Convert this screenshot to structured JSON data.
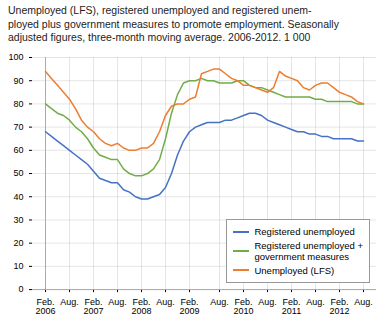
{
  "chart_data": {
    "type": "line",
    "title": "Unemployed (LFS), registered unemployed and registered unem-\nployed plus government measures to promote employment. Seasonally\nadjusted figures, three-month moving average. 2006-2012. 1 000",
    "categories": [
      "Feb.\n2006",
      null,
      null,
      null,
      "Aug.",
      null,
      null,
      null,
      "Feb.\n2007",
      null,
      null,
      null,
      "Aug.",
      null,
      null,
      null,
      "Feb.\n2008",
      null,
      null,
      null,
      "Aug.",
      null,
      null,
      null,
      "Feb.\n2009",
      null,
      null,
      null,
      null,
      "Aug.",
      null,
      null,
      null,
      "Feb.\n2010",
      null,
      null,
      null,
      "Aug.",
      null,
      null,
      null,
      "Feb.\n2011",
      null,
      null,
      null,
      "Aug.",
      null,
      null,
      null,
      "Feb.\n2012",
      null,
      null,
      null,
      "Aug."
    ],
    "series": [
      {
        "name": "Registered unemployed",
        "color": "#4472c4",
        "values": [
          68,
          66,
          64,
          62,
          60,
          58,
          56,
          54,
          51,
          48,
          47,
          46,
          46,
          43,
          42,
          40,
          39,
          39,
          40,
          41,
          44,
          50,
          58,
          64,
          68,
          70,
          71,
          72,
          72,
          72,
          73,
          73,
          74,
          75,
          76,
          76,
          75,
          73,
          72,
          71,
          70,
          69,
          68,
          68,
          67,
          67,
          66,
          66,
          65,
          65,
          65,
          65,
          64,
          64
        ]
      },
      {
        "name": "Registered unemployed +\ngovernment measures",
        "color": "#70ad47",
        "values": [
          80,
          78,
          76,
          75,
          73,
          70,
          68,
          65,
          61,
          58,
          57,
          56,
          56,
          52,
          50,
          49,
          49,
          50,
          52,
          56,
          65,
          76,
          84,
          89,
          90,
          90,
          91,
          90,
          90,
          89,
          89,
          89,
          90,
          90,
          88,
          87,
          87,
          86,
          85,
          84,
          83,
          83,
          83,
          83,
          83,
          82,
          82,
          81,
          81,
          81,
          81,
          81,
          80,
          80
        ]
      },
      {
        "name": "Unemployed (LFS)",
        "color": "#ed7d31",
        "values": [
          94,
          91,
          88,
          85,
          82,
          78,
          73,
          70,
          68,
          65,
          63,
          62,
          63,
          61,
          60,
          60,
          61,
          61,
          63,
          68,
          75,
          79,
          80,
          80,
          82,
          83,
          93,
          94,
          95,
          95,
          93,
          91,
          90,
          88,
          88,
          87,
          86,
          85,
          87,
          94,
          92,
          91,
          90,
          87,
          86,
          88,
          89,
          89,
          87,
          85,
          84,
          83,
          81,
          80
        ]
      }
    ],
    "ylim": [
      0,
      100
    ],
    "yticks": [
      0,
      10,
      20,
      30,
      40,
      50,
      60,
      70,
      80,
      90,
      100
    ],
    "grid": true,
    "legend": "lower right"
  }
}
